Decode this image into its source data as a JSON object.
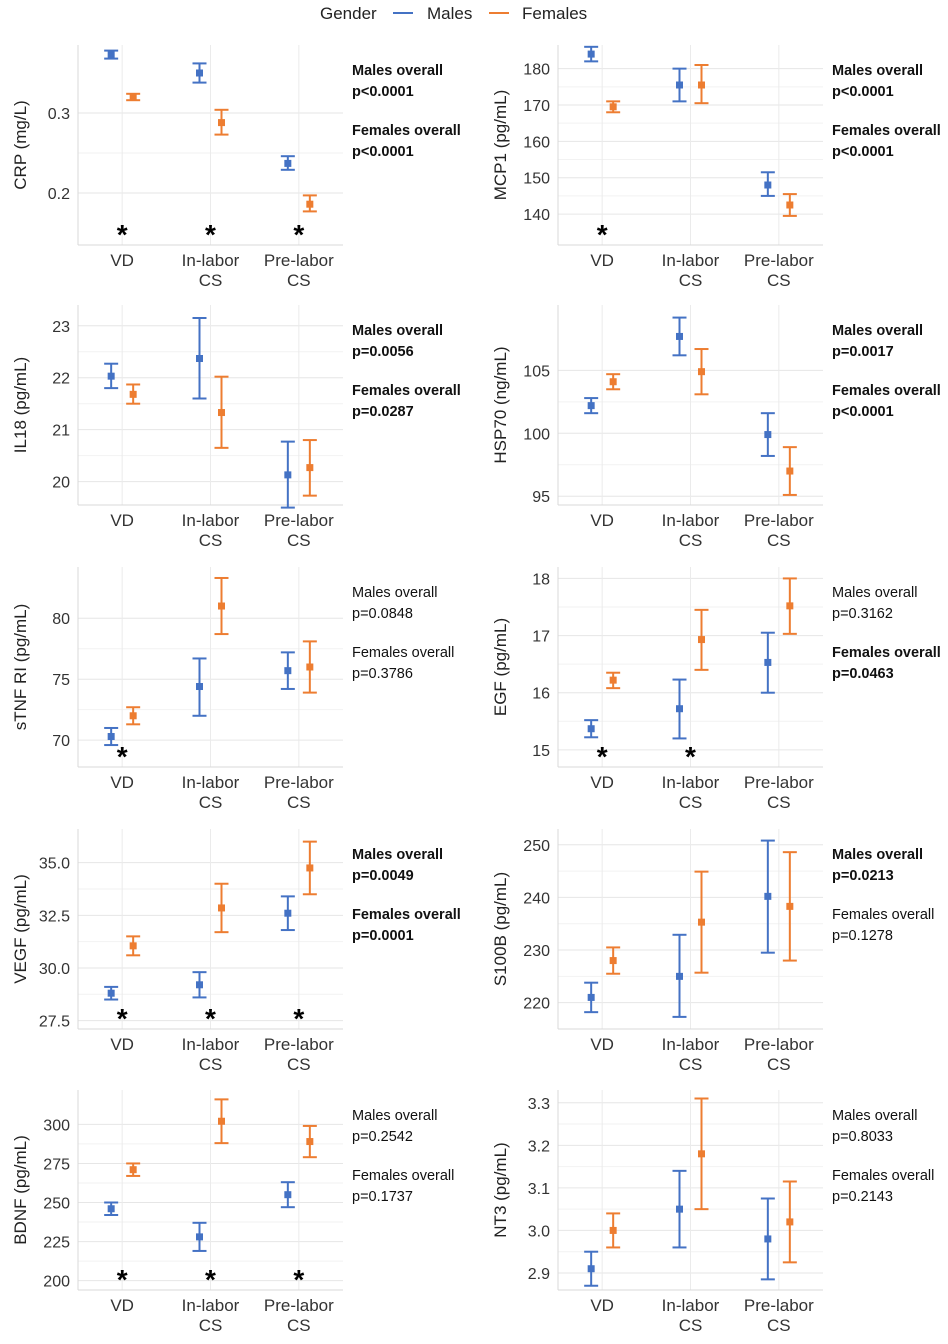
{
  "legend": {
    "title": "Gender",
    "items": [
      {
        "label": "Males",
        "color": "#4472C4"
      },
      {
        "label": "Females",
        "color": "#ED7D31"
      }
    ]
  },
  "chart_data": [
    {
      "type": "errorbar",
      "ylabel": "CRP (mg/L)",
      "categories": [
        "VD",
        "In-labor\nCS",
        "Pre-labor\nCS"
      ],
      "yticks": [
        0.2,
        0.3
      ],
      "ylim": [
        0.135,
        0.385
      ],
      "series": [
        {
          "name": "Males",
          "mean": [
            0.373,
            0.35,
            0.237
          ],
          "low": [
            0.368,
            0.338,
            0.229
          ],
          "high": [
            0.378,
            0.362,
            0.246
          ]
        },
        {
          "name": "Females",
          "mean": [
            0.32,
            0.288,
            0.186
          ],
          "low": [
            0.316,
            0.273,
            0.177
          ],
          "high": [
            0.324,
            0.304,
            0.197
          ]
        }
      ],
      "stars": [
        0,
        1,
        2
      ],
      "annotations": [
        {
          "label": "Males overall",
          "p": "p<0.0001",
          "bold": true
        },
        {
          "label": "Females overall",
          "p": "p<0.0001",
          "bold": true
        }
      ]
    },
    {
      "type": "errorbar",
      "ylabel": "MCP1 (pg/mL)",
      "categories": [
        "VD",
        "In-labor\nCS",
        "Pre-labor\nCS"
      ],
      "yticks": [
        140,
        150,
        160,
        170,
        180
      ],
      "ylim": [
        131.5,
        186.5
      ],
      "series": [
        {
          "name": "Males",
          "mean": [
            184,
            175.5,
            148
          ],
          "low": [
            182,
            171,
            145
          ],
          "high": [
            186,
            180,
            151.5
          ]
        },
        {
          "name": "Females",
          "mean": [
            169.5,
            175.5,
            142.5
          ],
          "low": [
            168,
            170.5,
            139.5
          ],
          "high": [
            171,
            181,
            145.5
          ]
        }
      ],
      "stars": [
        0
      ],
      "annotations": [
        {
          "label": "Males overall",
          "p": "p<0.0001",
          "bold": true
        },
        {
          "label": "Females overall",
          "p": "p<0.0001",
          "bold": true
        }
      ]
    },
    {
      "type": "errorbar",
      "ylabel": "IL18 (pg/mL)",
      "categories": [
        "VD",
        "In-labor\nCS",
        "Pre-labor\nCS"
      ],
      "yticks": [
        20,
        21,
        22,
        23
      ],
      "ylim": [
        19.55,
        23.4
      ],
      "series": [
        {
          "name": "Males",
          "mean": [
            22.03,
            22.37,
            20.13
          ],
          "low": [
            21.8,
            21.6,
            19.5
          ],
          "high": [
            22.27,
            23.15,
            20.77
          ]
        },
        {
          "name": "Females",
          "mean": [
            21.68,
            21.33,
            20.27
          ],
          "low": [
            21.5,
            20.65,
            19.73
          ],
          "high": [
            21.87,
            22.02,
            20.8
          ]
        }
      ],
      "stars": [],
      "annotations": [
        {
          "label": "Males overall",
          "p": "p=0.0056",
          "bold": true
        },
        {
          "label": "Females overall",
          "p": "p=0.0287",
          "bold": true
        }
      ]
    },
    {
      "type": "errorbar",
      "ylabel": "HSP70 (ng/mL)",
      "categories": [
        "VD",
        "In-labor\nCS",
        "Pre-labor\nCS"
      ],
      "yticks": [
        95,
        100,
        105
      ],
      "ylim": [
        94.3,
        110.2
      ],
      "series": [
        {
          "name": "Males",
          "mean": [
            102.2,
            107.7,
            99.9
          ],
          "low": [
            101.6,
            106.2,
            98.2
          ],
          "high": [
            102.8,
            109.2,
            101.6
          ]
        },
        {
          "name": "Females",
          "mean": [
            104.1,
            104.9,
            97
          ],
          "low": [
            103.5,
            103.1,
            95.1
          ],
          "high": [
            104.7,
            106.7,
            98.9
          ]
        }
      ],
      "stars": [],
      "annotations": [
        {
          "label": "Males overall",
          "p": "p=0.0017",
          "bold": true
        },
        {
          "label": "Females overall",
          "p": "p<0.0001",
          "bold": true
        }
      ]
    },
    {
      "type": "errorbar",
      "ylabel": "sTNF RI (pg/mL)",
      "categories": [
        "VD",
        "In-labor\nCS",
        "Pre-labor\nCS"
      ],
      "yticks": [
        70,
        75,
        80
      ],
      "ylim": [
        67.8,
        84.2
      ],
      "series": [
        {
          "name": "Males",
          "mean": [
            70.3,
            74.4,
            75.7
          ],
          "low": [
            69.6,
            72,
            74.2
          ],
          "high": [
            71,
            76.7,
            77.2
          ]
        },
        {
          "name": "Females",
          "mean": [
            72,
            81,
            76
          ],
          "low": [
            71.3,
            78.7,
            73.9
          ],
          "high": [
            72.7,
            83.3,
            78.1
          ]
        }
      ],
      "stars": [
        0
      ],
      "annotations": [
        {
          "label": "Males overall",
          "p": "p=0.0848",
          "bold": false
        },
        {
          "label": "Females overall",
          "p": "p=0.3786",
          "bold": false
        }
      ]
    },
    {
      "type": "errorbar",
      "ylabel": "EGF (pg/mL)",
      "categories": [
        "VD",
        "In-labor\nCS",
        "Pre-labor\nCS"
      ],
      "yticks": [
        15,
        16,
        17,
        18
      ],
      "ylim": [
        14.7,
        18.2
      ],
      "series": [
        {
          "name": "Males",
          "mean": [
            15.37,
            15.72,
            16.53
          ],
          "low": [
            15.22,
            15.2,
            16
          ],
          "high": [
            15.52,
            16.23,
            17.05
          ]
        },
        {
          "name": "Females",
          "mean": [
            16.22,
            16.93,
            17.52
          ],
          "low": [
            16.08,
            16.4,
            17.03
          ],
          "high": [
            16.35,
            17.45,
            18
          ]
        }
      ],
      "stars": [
        0,
        1
      ],
      "annotations": [
        {
          "label": "Males overall",
          "p": "p=0.3162",
          "bold": false
        },
        {
          "label": "Females overall",
          "p": "p=0.0463",
          "bold": true
        }
      ]
    },
    {
      "type": "errorbar",
      "ylabel": "VEGF (pg/mL)",
      "categories": [
        "VD",
        "In-labor\nCS",
        "Pre-labor\nCS"
      ],
      "yticks": [
        27.5,
        30.0,
        32.5,
        35.0
      ],
      "ylim": [
        27.1,
        36.6
      ],
      "series": [
        {
          "name": "Males",
          "mean": [
            28.8,
            29.2,
            32.6
          ],
          "low": [
            28.5,
            28.6,
            31.8
          ],
          "high": [
            29.1,
            29.8,
            33.4
          ]
        },
        {
          "name": "Females",
          "mean": [
            31.05,
            32.85,
            34.75
          ],
          "low": [
            30.6,
            31.7,
            33.5
          ],
          "high": [
            31.5,
            34,
            36
          ]
        }
      ],
      "stars": [
        0,
        1,
        2
      ],
      "annotations": [
        {
          "label": "Males overall",
          "p": "p=0.0049",
          "bold": true
        },
        {
          "label": "Females overall",
          "p": "p=0.0001",
          "bold": true
        }
      ]
    },
    {
      "type": "errorbar",
      "ylabel": "S100B (pg/mL)",
      "categories": [
        "VD",
        "In-labor\nCS",
        "Pre-labor\nCS"
      ],
      "yticks": [
        220,
        230,
        240,
        250
      ],
      "ylim": [
        215,
        253
      ],
      "series": [
        {
          "name": "Males",
          "mean": [
            221,
            225,
            240.2
          ],
          "low": [
            218.2,
            217.3,
            229.5
          ],
          "high": [
            223.8,
            232.9,
            250.8
          ]
        },
        {
          "name": "Females",
          "mean": [
            228,
            235.3,
            238.3
          ],
          "low": [
            225.5,
            225.7,
            228
          ],
          "high": [
            230.5,
            244.9,
            248.6
          ]
        }
      ],
      "stars": [],
      "annotations": [
        {
          "label": "Males overall",
          "p": "p=0.0213",
          "bold": true
        },
        {
          "label": "Females overall",
          "p": "p=0.1278",
          "bold": false
        }
      ]
    },
    {
      "type": "errorbar",
      "ylabel": "BDNF (pg/mL)",
      "categories": [
        "VD",
        "In-labor\nCS",
        "Pre-labor\nCS"
      ],
      "yticks": [
        200,
        225,
        250,
        275,
        300
      ],
      "ylim": [
        194,
        322
      ],
      "series": [
        {
          "name": "Males",
          "mean": [
            246,
            228,
            255
          ],
          "low": [
            242,
            219,
            247
          ],
          "high": [
            250,
            237,
            263
          ]
        },
        {
          "name": "Females",
          "mean": [
            271,
            302,
            289
          ],
          "low": [
            267,
            288,
            279
          ],
          "high": [
            275,
            316,
            299
          ]
        }
      ],
      "stars": [
        0,
        1,
        2
      ],
      "annotations": [
        {
          "label": "Males overall",
          "p": "p=0.2542",
          "bold": false
        },
        {
          "label": "Females overall",
          "p": "p=0.1737",
          "bold": false
        }
      ]
    },
    {
      "type": "errorbar",
      "ylabel": "NT3 (pg/mL)",
      "categories": [
        "VD",
        "In-labor\nCS",
        "Pre-labor\nCS"
      ],
      "yticks": [
        2.9,
        3.0,
        3.1,
        3.2,
        3.3
      ],
      "ylim": [
        2.86,
        3.33
      ],
      "series": [
        {
          "name": "Males",
          "mean": [
            2.91,
            3.05,
            2.98
          ],
          "low": [
            2.87,
            2.96,
            2.885
          ],
          "high": [
            2.95,
            3.14,
            3.075
          ]
        },
        {
          "name": "Females",
          "mean": [
            3.0,
            3.18,
            3.02
          ],
          "low": [
            2.96,
            3.05,
            2.925
          ],
          "high": [
            3.04,
            3.31,
            3.115
          ]
        }
      ],
      "stars": [],
      "annotations": [
        {
          "label": "Males overall",
          "p": "p=0.8033",
          "bold": false
        },
        {
          "label": "Females overall",
          "p": "p=0.2143",
          "bold": false
        }
      ]
    }
  ]
}
